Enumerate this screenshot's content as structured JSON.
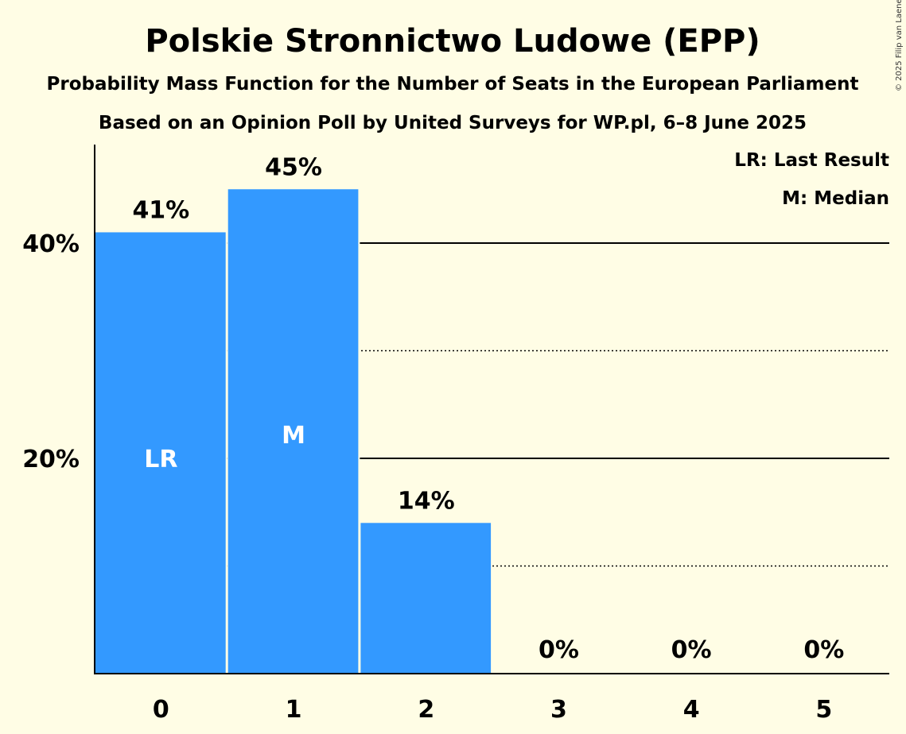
{
  "page": {
    "title": "Polskie Stronnictwo Ludowe (EPP)",
    "subtitle1": "Probability Mass Function for the Number of Seats in the European Parliament",
    "subtitle2": "Based on an Opinion Poll by United Surveys for WP.pl, 6–8 June 2025",
    "copyright": "© 2025 Filip van Laenen"
  },
  "legend": {
    "lr": "LR: Last Result",
    "m": "M: Median"
  },
  "colors": {
    "background": "#fffde5",
    "bar": "#3399ff",
    "bar_label": "#ffffff",
    "axis": "#000000"
  },
  "chart_data": {
    "type": "bar",
    "title": "Polskie Stronnictwo Ludowe (EPP)",
    "categories": [
      "0",
      "1",
      "2",
      "3",
      "4",
      "5"
    ],
    "values": [
      41,
      45,
      14,
      0,
      0,
      0
    ],
    "value_labels": [
      "41%",
      "45%",
      "14%",
      "0%",
      "0%",
      "0%"
    ],
    "bar_markers": [
      "LR",
      "M",
      "",
      "",
      "",
      ""
    ],
    "ylim": [
      0,
      49
    ],
    "yticks": [
      20,
      40
    ],
    "ytick_labels": [
      "20%",
      "40%"
    ],
    "gridlines_solid": [
      20,
      40
    ],
    "gridlines_dotted": [
      10,
      30
    ],
    "grid": true,
    "legend_position": "top-right",
    "xlabel": "",
    "ylabel": ""
  }
}
